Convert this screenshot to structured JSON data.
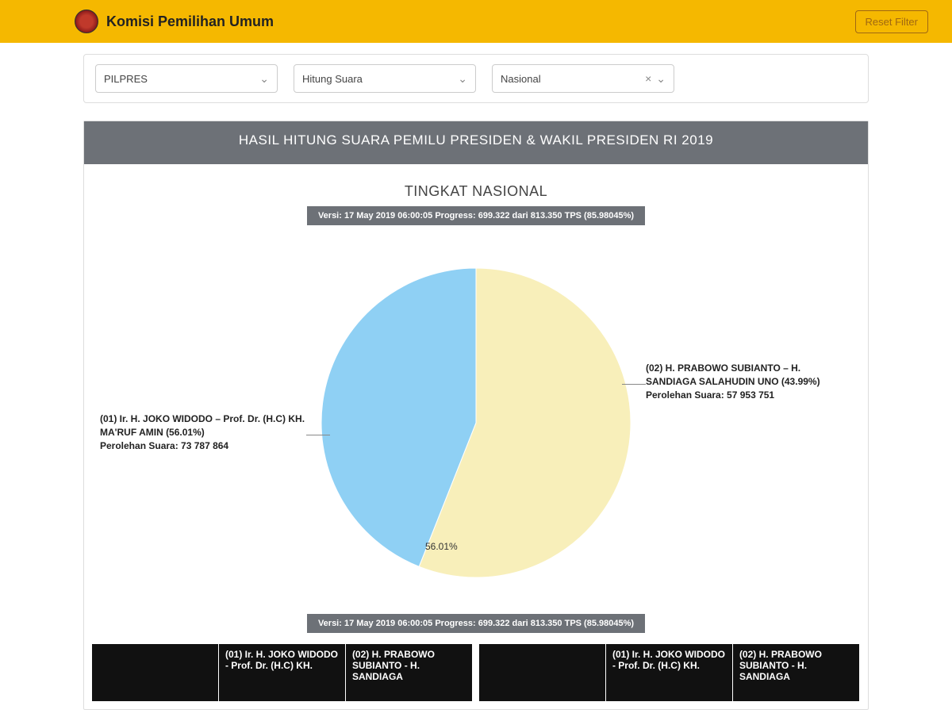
{
  "header": {
    "brand": "Komisi Pemilihan Umum",
    "reset_label": "Reset Filter"
  },
  "filters": {
    "election_type": "PILPRES",
    "mode": "Hitung Suara",
    "region": "Nasional"
  },
  "panel": {
    "title": "HASIL HITUNG SUARA PEMILU PRESIDEN & WAKIL PRESIDEN RI 2019",
    "subtitle": "TINGKAT NASIONAL",
    "version_text": "Versi: 17 May 2019 06:00:05 Progress: 699.322 dari 813.350 TPS (85.98045%)"
  },
  "pie": {
    "type": "pie",
    "radius": 195,
    "background": "#ffffff",
    "slices": [
      {
        "label": "(01) Ir. H. JOKO WIDODO – Prof. Dr. (H.C) KH. MA'RUF AMIN (56.01%)",
        "votes_line": "Perolehan Suara: 73 787 864",
        "pct": 56.01,
        "color": "#f8efba",
        "start_deg": -90,
        "end_deg": 111.6
      },
      {
        "label": "(02) H. PRABOWO SUBIANTO – H. SANDIAGA SALAHUDIN UNO (43.99%)",
        "votes_line": "Perolehan Suara: 57 953 751",
        "pct": 43.99,
        "color": "#8fd0f4",
        "start_deg": 111.6,
        "end_deg": 270
      }
    ],
    "inner_label": "56.01%"
  },
  "tables": {
    "header_col_1": "",
    "header_col_2": "(01) Ir. H. JOKO WIDODO - Prof. Dr. (H.C) KH.",
    "header_col_3": "(02) H. PRABOWO SUBIANTO - H. SANDIAGA"
  }
}
